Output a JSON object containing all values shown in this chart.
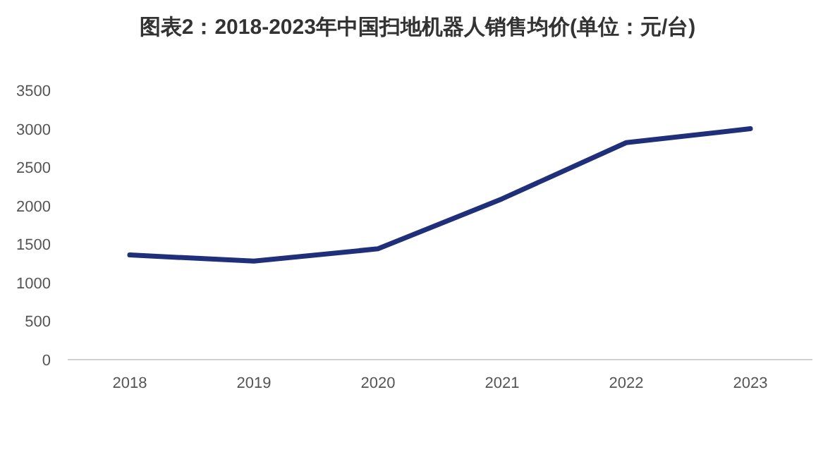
{
  "chart_data": {
    "type": "line",
    "title": "图表2：2018-2023年中国扫地机器人销售均价(单位：元/台)",
    "categories": [
      "2018",
      "2019",
      "2020",
      "2021",
      "2022",
      "2023"
    ],
    "series": [
      {
        "color": "#1f2f7a",
        "values": [
          1360,
          1280,
          1440,
          2090,
          2820,
          3000
        ]
      }
    ],
    "ylim": [
      0,
      3500
    ],
    "yticks": [
      0,
      500,
      1000,
      1500,
      2000,
      2500,
      3000,
      3500
    ],
    "grid": false,
    "marker": "none",
    "line_style": "solid"
  }
}
